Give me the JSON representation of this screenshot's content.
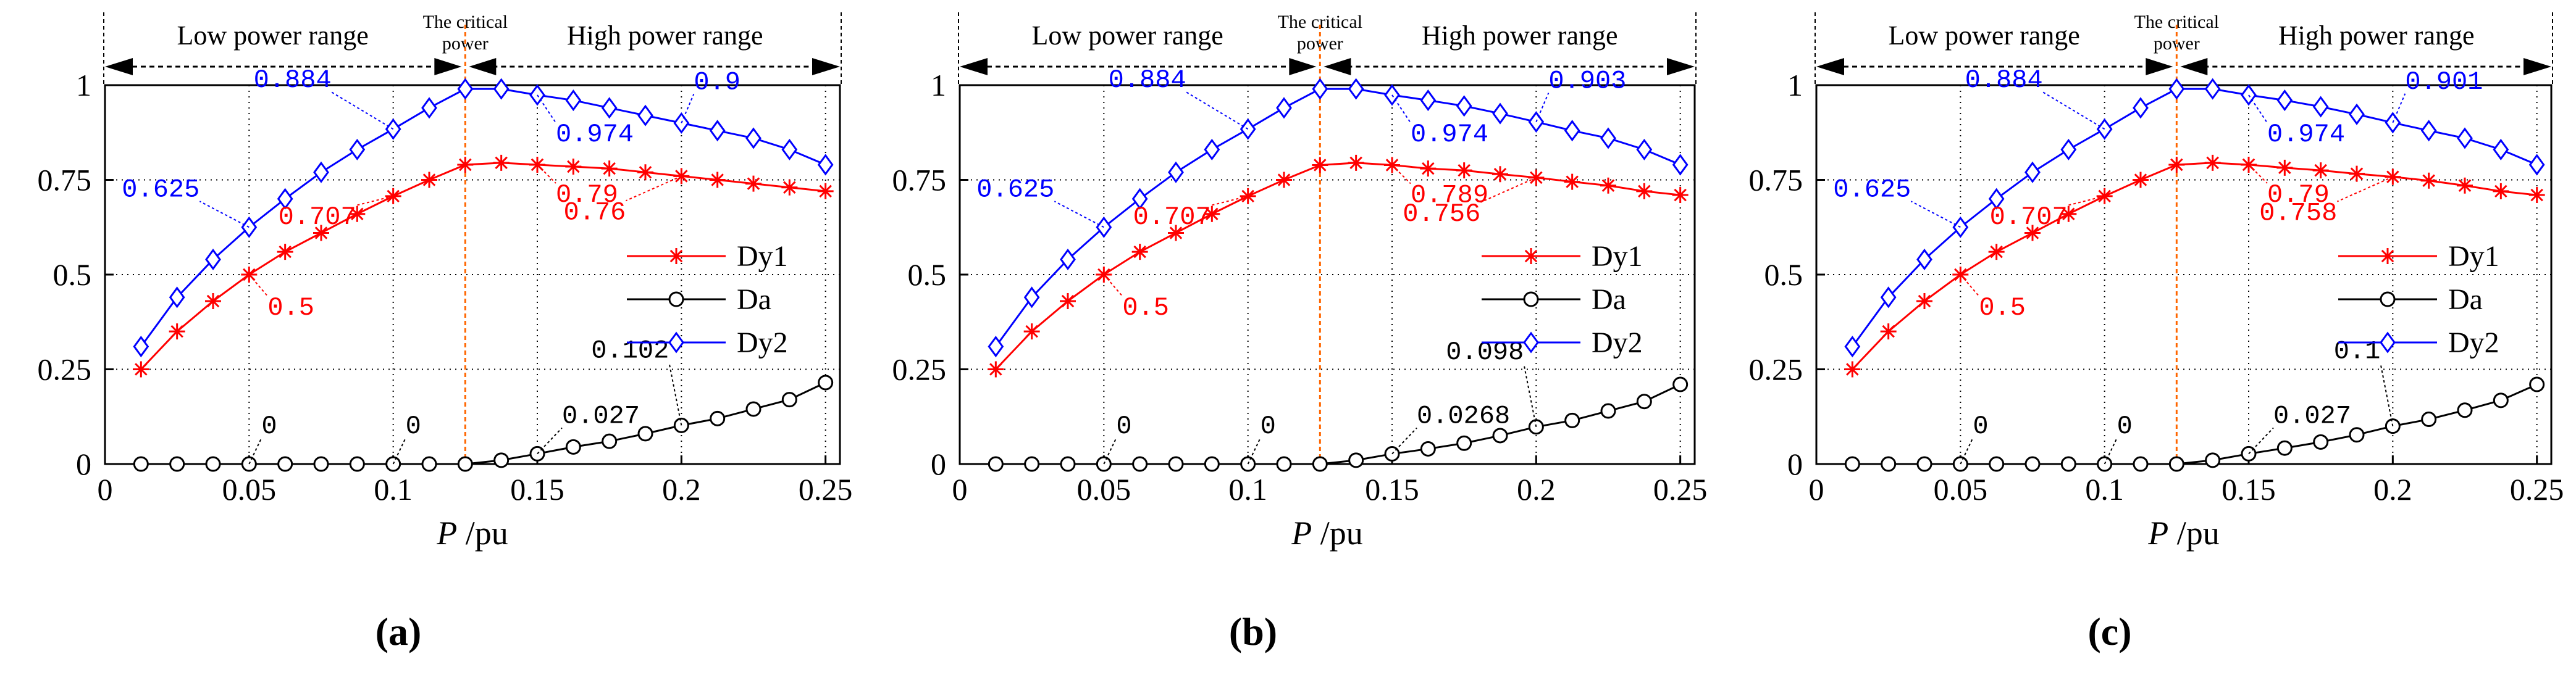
{
  "figure": {
    "shared": {
      "x_ticks": [
        "0",
        "0.05",
        "0.1",
        "0.15",
        "0.2",
        "0.25"
      ],
      "y_ticks": [
        "0",
        "0.25",
        "0.5",
        "0.75",
        "1"
      ],
      "xlabel_italic": "P",
      "xlabel_unit": " /pu",
      "range_low": "Low power range",
      "range_high": "High power range",
      "critical_line1": "The critical",
      "critical_line2": "power",
      "colors": {
        "dy1": "#ff0000",
        "da": "#000000",
        "dy2": "#0000ff",
        "critical": "#ff6600"
      }
    }
  },
  "chart_data": [
    {
      "type": "line",
      "panel_label": "(a)",
      "xlim": [
        0,
        0.255
      ],
      "ylim": [
        0,
        1
      ],
      "x_ticks": [
        0,
        0.05,
        0.1,
        0.15,
        0.2,
        0.25
      ],
      "y_ticks": [
        0,
        0.25,
        0.5,
        0.75,
        1
      ],
      "critical_power": 0.125,
      "x": [
        0.0125,
        0.025,
        0.0375,
        0.05,
        0.0625,
        0.075,
        0.0875,
        0.1,
        0.1125,
        0.125,
        0.1375,
        0.15,
        0.1625,
        0.175,
        0.1875,
        0.2,
        0.2125,
        0.225,
        0.2375,
        0.25
      ],
      "series": [
        {
          "name": "Dy1",
          "marker": "star",
          "values": [
            0.25,
            0.35,
            0.43,
            0.5,
            0.56,
            0.61,
            0.66,
            0.707,
            0.75,
            0.79,
            0.795,
            0.79,
            0.785,
            0.78,
            0.77,
            0.76,
            0.75,
            0.74,
            0.73,
            0.72
          ]
        },
        {
          "name": "Da",
          "marker": "circle",
          "values": [
            0,
            0,
            0,
            0,
            0,
            0,
            0,
            0,
            0,
            0,
            0.01,
            0.027,
            0.045,
            0.06,
            0.08,
            0.102,
            0.12,
            0.145,
            0.17,
            0.215
          ]
        },
        {
          "name": "Dy2",
          "marker": "diamond",
          "values": [
            0.31,
            0.44,
            0.54,
            0.625,
            0.7,
            0.77,
            0.83,
            0.884,
            0.94,
            0.99,
            0.99,
            0.974,
            0.96,
            0.94,
            0.92,
            0.9,
            0.88,
            0.86,
            0.83,
            0.79
          ]
        }
      ],
      "annotations": [
        {
          "text": "0.884",
          "series": "Dy2",
          "x": 0.1
        },
        {
          "text": "0.625",
          "series": "Dy2",
          "x": 0.05
        },
        {
          "text": "0.974",
          "series": "Dy2",
          "x": 0.15
        },
        {
          "text": "0.9",
          "series": "Dy2",
          "x": 0.2
        },
        {
          "text": "0.707",
          "series": "Dy1",
          "x": 0.1
        },
        {
          "text": "0.5",
          "series": "Dy1",
          "x": 0.05
        },
        {
          "text": "0.79",
          "series": "Dy1",
          "x": 0.15
        },
        {
          "text": "0.76",
          "series": "Dy1",
          "x": 0.2
        },
        {
          "text": "0",
          "series": "Da",
          "x": 0.05
        },
        {
          "text": "0",
          "series": "Da",
          "x": 0.1
        },
        {
          "text": "0.027",
          "series": "Da",
          "x": 0.15
        },
        {
          "text": "0.102",
          "series": "Da",
          "x": 0.2
        }
      ]
    },
    {
      "type": "line",
      "panel_label": "(b)",
      "xlim": [
        0,
        0.255
      ],
      "ylim": [
        0,
        1
      ],
      "x_ticks": [
        0,
        0.05,
        0.1,
        0.15,
        0.2,
        0.25
      ],
      "y_ticks": [
        0,
        0.25,
        0.5,
        0.75,
        1
      ],
      "critical_power": 0.125,
      "x": [
        0.0125,
        0.025,
        0.0375,
        0.05,
        0.0625,
        0.075,
        0.0875,
        0.1,
        0.1125,
        0.125,
        0.1375,
        0.15,
        0.1625,
        0.175,
        0.1875,
        0.2,
        0.2125,
        0.225,
        0.2375,
        0.25
      ],
      "series": [
        {
          "name": "Dy1",
          "marker": "star",
          "values": [
            0.25,
            0.35,
            0.43,
            0.5,
            0.56,
            0.61,
            0.66,
            0.707,
            0.75,
            0.789,
            0.795,
            0.789,
            0.78,
            0.775,
            0.765,
            0.756,
            0.745,
            0.735,
            0.72,
            0.71
          ]
        },
        {
          "name": "Da",
          "marker": "circle",
          "values": [
            0,
            0,
            0,
            0,
            0,
            0,
            0,
            0,
            0,
            0,
            0.01,
            0.0268,
            0.04,
            0.055,
            0.075,
            0.098,
            0.115,
            0.14,
            0.165,
            0.21
          ]
        },
        {
          "name": "Dy2",
          "marker": "diamond",
          "values": [
            0.31,
            0.44,
            0.54,
            0.625,
            0.7,
            0.77,
            0.83,
            0.884,
            0.94,
            0.99,
            0.99,
            0.974,
            0.96,
            0.945,
            0.925,
            0.903,
            0.88,
            0.86,
            0.83,
            0.79
          ]
        }
      ],
      "annotations": [
        {
          "text": "0.884",
          "series": "Dy2",
          "x": 0.1
        },
        {
          "text": "0.625",
          "series": "Dy2",
          "x": 0.05
        },
        {
          "text": "0.974",
          "series": "Dy2",
          "x": 0.15
        },
        {
          "text": "0.903",
          "series": "Dy2",
          "x": 0.2
        },
        {
          "text": "0.707",
          "series": "Dy1",
          "x": 0.1
        },
        {
          "text": "0.5",
          "series": "Dy1",
          "x": 0.05
        },
        {
          "text": "0.789",
          "series": "Dy1",
          "x": 0.15
        },
        {
          "text": "0.756",
          "series": "Dy1",
          "x": 0.2
        },
        {
          "text": "0",
          "series": "Da",
          "x": 0.05
        },
        {
          "text": "0",
          "series": "Da",
          "x": 0.1
        },
        {
          "text": "0.0268",
          "series": "Da",
          "x": 0.15
        },
        {
          "text": "0.098",
          "series": "Da",
          "x": 0.2
        }
      ]
    },
    {
      "type": "line",
      "panel_label": "(c)",
      "xlim": [
        0,
        0.255
      ],
      "ylim": [
        0,
        1
      ],
      "x_ticks": [
        0,
        0.05,
        0.1,
        0.15,
        0.2,
        0.25
      ],
      "y_ticks": [
        0,
        0.25,
        0.5,
        0.75,
        1
      ],
      "critical_power": 0.125,
      "x": [
        0.0125,
        0.025,
        0.0375,
        0.05,
        0.0625,
        0.075,
        0.0875,
        0.1,
        0.1125,
        0.125,
        0.1375,
        0.15,
        0.1625,
        0.175,
        0.1875,
        0.2,
        0.2125,
        0.225,
        0.2375,
        0.25
      ],
      "series": [
        {
          "name": "Dy1",
          "marker": "star",
          "values": [
            0.25,
            0.35,
            0.43,
            0.5,
            0.56,
            0.61,
            0.66,
            0.707,
            0.75,
            0.79,
            0.795,
            0.79,
            0.782,
            0.775,
            0.766,
            0.758,
            0.748,
            0.735,
            0.72,
            0.71
          ]
        },
        {
          "name": "Da",
          "marker": "circle",
          "values": [
            0,
            0,
            0,
            0,
            0,
            0,
            0,
            0,
            0,
            0,
            0.01,
            0.027,
            0.042,
            0.058,
            0.077,
            0.1,
            0.118,
            0.142,
            0.168,
            0.21
          ]
        },
        {
          "name": "Dy2",
          "marker": "diamond",
          "values": [
            0.31,
            0.44,
            0.54,
            0.625,
            0.7,
            0.77,
            0.83,
            0.884,
            0.94,
            0.99,
            0.99,
            0.974,
            0.96,
            0.943,
            0.923,
            0.901,
            0.88,
            0.86,
            0.83,
            0.79
          ]
        }
      ],
      "annotations": [
        {
          "text": "0.884",
          "series": "Dy2",
          "x": 0.1
        },
        {
          "text": "0.625",
          "series": "Dy2",
          "x": 0.05
        },
        {
          "text": "0.974",
          "series": "Dy2",
          "x": 0.15
        },
        {
          "text": "0.901",
          "series": "Dy2",
          "x": 0.2
        },
        {
          "text": "0.707",
          "series": "Dy1",
          "x": 0.1
        },
        {
          "text": "0.5",
          "series": "Dy1",
          "x": 0.05
        },
        {
          "text": "0.79",
          "series": "Dy1",
          "x": 0.15
        },
        {
          "text": "0.758",
          "series": "Dy1",
          "x": 0.2
        },
        {
          "text": "0",
          "series": "Da",
          "x": 0.05
        },
        {
          "text": "0",
          "series": "Da",
          "x": 0.1
        },
        {
          "text": "0.027",
          "series": "Da",
          "x": 0.15
        },
        {
          "text": "0.1",
          "series": "Da",
          "x": 0.2
        }
      ]
    }
  ]
}
